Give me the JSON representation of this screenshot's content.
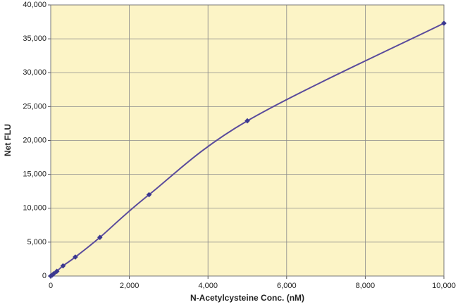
{
  "chart_data": {
    "type": "scatter-line",
    "xlabel": "N-Acetylcysteine Conc. (nM)",
    "ylabel": "Net FLU",
    "x": [
      0,
      39,
      78,
      156,
      312,
      625,
      1250,
      2500,
      5000,
      10000
    ],
    "values": [
      0,
      150,
      350,
      700,
      1500,
      2800,
      5700,
      12000,
      22900,
      37300
    ],
    "line_color": "#5a4b9c",
    "marker_color": "#3b3890",
    "background": "#fcf4c6",
    "grid": true,
    "smooth": true,
    "xlim": [
      0,
      10000
    ],
    "xticks": [
      0,
      {
        "value": 2000,
        "label": "2,000"
      },
      {
        "value": 4000,
        "label": "4,000"
      },
      {
        "value": 6000,
        "label": "6,000"
      },
      {
        "value": 8000,
        "label": "8,000"
      },
      {
        "value": 10000,
        "label": "10,000"
      }
    ],
    "ylim": [
      0,
      40000
    ],
    "yticks": [
      0,
      {
        "value": 5000,
        "label": "5,000"
      },
      {
        "value": 10000,
        "label": "10,000"
      },
      {
        "value": 15000,
        "label": "15,000"
      },
      {
        "value": 20000,
        "label": "20,000"
      },
      {
        "value": 25000,
        "label": "25,000"
      },
      {
        "value": 30000,
        "label": "30,000"
      },
      {
        "value": 35000,
        "label": "35,000"
      },
      {
        "value": 40000,
        "label": "40,000"
      }
    ]
  }
}
